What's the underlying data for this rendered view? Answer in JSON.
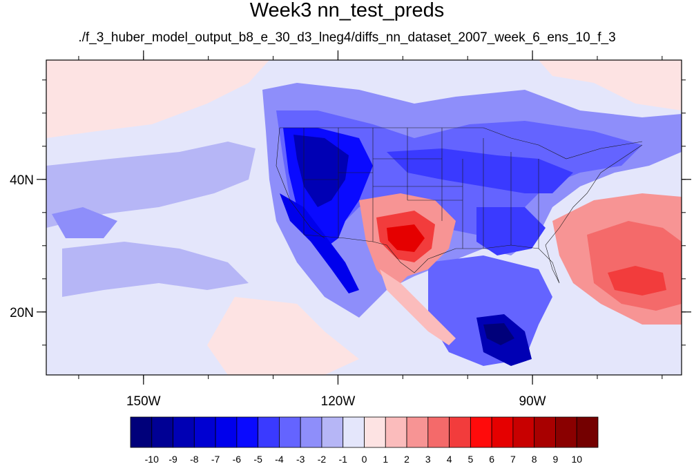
{
  "title": "Week3 nn_test_preds",
  "subtitle": "./f_3_huber_model_output_b8_e_30_d3_lneg4/diffs_nn_dataset_2007_week_6_ens_10_f_3",
  "axes": {
    "lon_range": [
      -165,
      -67
    ],
    "lat_range": [
      10.5,
      58
    ],
    "x_ticks": [
      {
        "value": -150,
        "label": "150W"
      },
      {
        "value": -120,
        "label": "120W"
      },
      {
        "value": -90,
        "label": "90W"
      }
    ],
    "y_ticks": [
      {
        "value": 20,
        "label": "20N"
      },
      {
        "value": 40,
        "label": "40N"
      }
    ]
  },
  "colorbar": {
    "labels": [
      "-10",
      "-9",
      "-8",
      "-7",
      "-6",
      "-5",
      "-4",
      "-3",
      "-2",
      "-1",
      "0",
      "1",
      "2",
      "3",
      "4",
      "5",
      "6",
      "7",
      "8",
      "9",
      "10"
    ],
    "colors": [
      "#00007a",
      "#000094",
      "#0000b4",
      "#0000d2",
      "#0000ec",
      "#0a0aff",
      "#3a3aff",
      "#6464ff",
      "#8e8efa",
      "#b6b6f6",
      "#e4e6fb",
      "#fde3e3",
      "#fbbcbc",
      "#f79494",
      "#f46a6a",
      "#f23c3c",
      "#ff0b0b",
      "#e50000",
      "#c80000",
      "#a80000",
      "#8a0000",
      "#740000"
    ]
  },
  "map": {
    "background_color": "#e4e6fb",
    "regions": [
      {
        "name": "west-coast-blue",
        "value": -9
      },
      {
        "name": "texas-red",
        "value": 6
      },
      {
        "name": "atlantic-red",
        "value": 4
      },
      {
        "name": "gulf-mexico-blue",
        "value": -8
      },
      {
        "name": "north-pacific-pink",
        "value": 1
      }
    ]
  }
}
